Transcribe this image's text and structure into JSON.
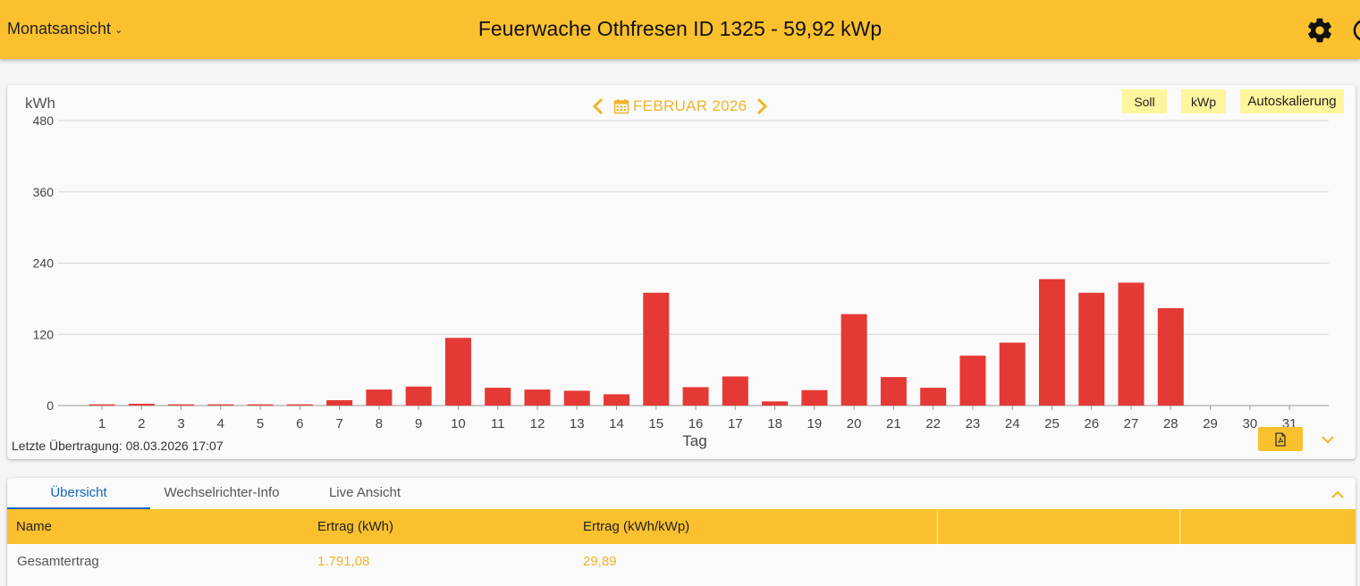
{
  "header": {
    "view_select": "Monatsansicht",
    "title": "Feuerwache Othfresen ID 1325 - 59,92 kWp"
  },
  "chart_toolbar": {
    "month": "FEBRUAR 2026",
    "soll": "Soll",
    "kwp": "kWp",
    "autoscale": "Autoskalierung"
  },
  "chart_data": {
    "type": "bar",
    "ylabel": "kWh",
    "xlabel": "Tag",
    "ylim": [
      0,
      480
    ],
    "yticks": [
      0,
      120,
      240,
      360,
      480
    ],
    "categories": [
      "1",
      "2",
      "3",
      "4",
      "5",
      "6",
      "7",
      "8",
      "9",
      "10",
      "11",
      "12",
      "13",
      "14",
      "15",
      "16",
      "17",
      "18",
      "19",
      "20",
      "21",
      "22",
      "23",
      "24",
      "25",
      "26",
      "27",
      "28",
      "29",
      "30",
      "31"
    ],
    "values": [
      2,
      3,
      2,
      2,
      2,
      2,
      9,
      27,
      32,
      114,
      30,
      27,
      25,
      19,
      190,
      31,
      49,
      7,
      26,
      154,
      48,
      30,
      84,
      106,
      213,
      190,
      207,
      164,
      0,
      0,
      0
    ],
    "bar_color": "#e53935",
    "grid": true
  },
  "footer": {
    "last_transfer": "Letzte Übertragung: 08.03.2026 17:07"
  },
  "tabs": [
    {
      "label": "Übersicht",
      "active": true
    },
    {
      "label": "Wechselrichter-Info",
      "active": false
    },
    {
      "label": "Live Ansicht",
      "active": false
    }
  ],
  "table": {
    "headers": [
      "Name",
      "Ertrag (kWh)",
      "Ertrag (kWh/kWp)"
    ],
    "rows": [
      [
        "Gesamtertrag",
        "1.791,08",
        "29,89"
      ]
    ]
  },
  "colors": {
    "accent": "#fbc02d",
    "link_blue": "#1565c0",
    "value_text": "#f0b429"
  }
}
